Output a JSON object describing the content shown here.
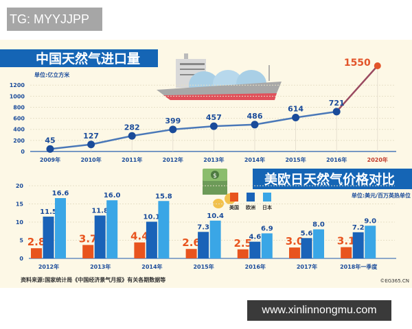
{
  "watermark_top": "TG: MYYJJPP",
  "watermark_bottom": "www.xinlinnongmu.com",
  "source": "资料来源:国家统计局《中国经济景气月报》有关各期数据等",
  "credit": "©EG365.CN",
  "colors": {
    "background": "#fdf8e6",
    "title_bar": "#1565b5",
    "line": "#4a78b8",
    "point": "#1a4b9a",
    "forecast": "#e2542a",
    "us": "#e8541e",
    "europe": "#1a63b8",
    "japan": "#3aa6e6"
  },
  "chart_data": [
    {
      "type": "line",
      "title": "中国天然气进口量",
      "unit": "单位:亿立方米",
      "categories": [
        "2009年",
        "2010年",
        "2011年",
        "2012年",
        "2013年",
        "2014年",
        "2015年",
        "2016年",
        "2020年"
      ],
      "values": [
        45,
        127,
        282,
        399,
        457,
        486,
        614,
        721,
        1550
      ],
      "highlight": {
        "category": "2020年",
        "value": 1550,
        "color": "#e2542a"
      },
      "yticks": [
        0,
        200,
        400,
        600,
        800,
        1000,
        1200
      ],
      "ylim": [
        0,
        1550
      ],
      "grid": true
    },
    {
      "type": "bar",
      "title": "美欧日天然气价格对比",
      "unit": "单位:美元/百万英热单位",
      "categories": [
        "2012年",
        "2013年",
        "2014年",
        "2015年",
        "2016年",
        "2017年",
        "2018年一季度"
      ],
      "series": [
        {
          "name": "美国",
          "values": [
            2.8,
            3.7,
            4.4,
            2.6,
            2.5,
            3.0,
            3.1
          ]
        },
        {
          "name": "欧洲",
          "values": [
            11.5,
            11.8,
            10.1,
            7.3,
            4.6,
            5.6,
            7.2
          ]
        },
        {
          "name": "日本",
          "values": [
            16.6,
            16.0,
            15.8,
            10.4,
            6.9,
            8.0,
            9.0
          ]
        }
      ],
      "yticks": [
        0,
        5,
        10,
        15,
        20
      ],
      "ylim": [
        0,
        20
      ],
      "legend": "top-right",
      "grid": true
    }
  ]
}
